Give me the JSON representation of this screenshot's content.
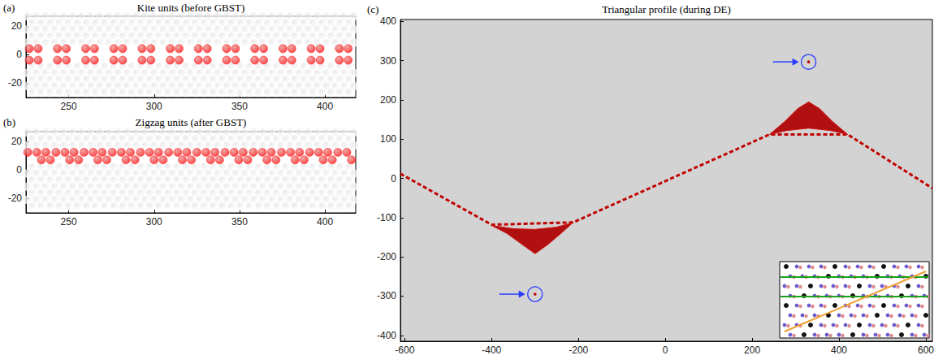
{
  "chart_data": [
    {
      "type": "scatter",
      "label": "(a)",
      "title": "Kite units (before GBST)",
      "xlim": [
        225,
        418
      ],
      "ylim": [
        -30,
        27
      ],
      "xticks": [
        250,
        300,
        350,
        400
      ],
      "yticks": [
        -20,
        0,
        20
      ],
      "series": [
        {
          "color": "#c8c8c8",
          "marker": "circle",
          "rows": [
            {
              "y": 26.9,
              "x_start": 226.0,
              "x_step": 5.3
            },
            {
              "y": 22.3,
              "x_start": 228.7,
              "x_step": 5.3
            },
            {
              "y": 17.7,
              "x_start": 226.0,
              "x_step": 5.3
            },
            {
              "y": 13.1,
              "x_start": 228.7,
              "x_step": 5.3
            },
            {
              "y": 8.5,
              "x_start": 226.0,
              "x_step": 5.3
            },
            {
              "y": -8.2,
              "x_start": 228.7,
              "x_step": 5.3
            },
            {
              "y": -12.8,
              "x_start": 226.0,
              "x_step": 5.3
            },
            {
              "y": -17.4,
              "x_start": 228.7,
              "x_step": 5.3
            },
            {
              "y": -22.0,
              "x_start": 226.0,
              "x_step": 5.3
            },
            {
              "y": -26.6,
              "x_start": 228.7,
              "x_step": 5.3
            }
          ]
        },
        {
          "color": "#cc1111",
          "marker": "circle",
          "rows": [
            {
              "y": 4.3,
              "x": [
                226.9,
                232.1,
                243.4,
                248.6,
                259.9,
                265.1,
                276.4,
                281.6,
                292.9,
                298.1,
                309.4,
                314.6,
                325.9,
                331.1,
                342.4,
                347.6,
                358.9,
                364.1,
                375.4,
                380.6,
                391.9,
                397.1,
                408.4,
                413.6
              ]
            },
            {
              "y": -3.8,
              "x": [
                226.9,
                232.1,
                243.4,
                248.6,
                259.9,
                265.1,
                276.4,
                281.6,
                292.9,
                298.1,
                309.4,
                314.6,
                325.9,
                331.1,
                342.4,
                347.6,
                358.9,
                364.1,
                375.4,
                380.6,
                391.9,
                397.1,
                408.4,
                413.6
              ]
            }
          ]
        }
      ]
    },
    {
      "type": "scatter",
      "label": "(b)",
      "title": "Zigzag units (after GBST)",
      "xlim": [
        225,
        418
      ],
      "ylim": [
        -30,
        27
      ],
      "xticks": [
        250,
        300,
        350,
        400
      ],
      "yticks": [
        -20,
        0,
        20
      ],
      "series": [
        {
          "color": "#c8c8c8",
          "marker": "circle",
          "rows": [
            {
              "y": 26.4,
              "x_start": 226.0,
              "x_step": 5.3
            },
            {
              "y": 21.8,
              "x_start": 228.7,
              "x_step": 5.3
            },
            {
              "y": 17.2,
              "x_start": 226.0,
              "x_step": 5.3
            },
            {
              "y": 2.2,
              "x_start": 228.7,
              "x_step": 5.3
            },
            {
              "y": -2.4,
              "x_start": 226.0,
              "x_step": 5.3
            },
            {
              "y": -7.0,
              "x_start": 228.7,
              "x_step": 5.3
            },
            {
              "y": -11.6,
              "x_start": 226.0,
              "x_step": 5.3
            },
            {
              "y": -16.2,
              "x_start": 228.7,
              "x_step": 5.3
            },
            {
              "y": -20.8,
              "x_start": 226.0,
              "x_step": 5.3
            },
            {
              "y": -25.4,
              "x_start": 228.7,
              "x_step": 5.3
            }
          ]
        },
        {
          "color": "#cc1111",
          "marker": "circle",
          "rows": [
            {
              "y": 12.5,
              "x": [
                226.0,
                231.3,
                236.6,
                242.5,
                247.8,
                253.1,
                259.0,
                264.3,
                269.6,
                275.5,
                280.8,
                286.1,
                292.0,
                297.3,
                302.6,
                308.5,
                313.8,
                319.1,
                325.0,
                330.3,
                335.6,
                341.5,
                346.8,
                352.1,
                358.0,
                363.3,
                368.6,
                374.5,
                379.8,
                385.1,
                391.0,
                396.3,
                401.6,
                407.5,
                412.8
              ]
            },
            {
              "y": 7.2,
              "x": [
                234.0,
                239.3,
                250.5,
                255.8,
                267.0,
                272.3,
                283.5,
                288.8,
                300.0,
                305.3,
                316.5,
                321.8,
                333.0,
                338.3,
                349.5,
                354.8,
                366.0,
                371.3,
                382.5,
                387.8,
                399.0,
                404.3,
                415.5
              ]
            }
          ]
        }
      ]
    },
    {
      "type": "line",
      "label": "(c)",
      "title": "Triangular profile (during DE)",
      "xlim": [
        -610,
        615
      ],
      "ylim": [
        -415,
        405
      ],
      "xticks": [
        -600,
        -400,
        -200,
        0,
        200,
        400,
        600
      ],
      "yticks": [
        -400,
        -300,
        -200,
        -100,
        0,
        100,
        200,
        300,
        400
      ],
      "boundary": {
        "color": "#c00000",
        "line_style": "dashed",
        "x": [
          -610,
          -400,
          -212,
          240,
          420,
          615
        ],
        "y": [
          12,
          -118,
          -112,
          112,
          112,
          -25
        ]
      },
      "regions": [
        {
          "color": "#b01010",
          "x": [
            -400,
            -350,
            -300,
            -250,
            -212,
            -240,
            -270,
            -300,
            -330,
            -365
          ],
          "y": [
            -120,
            -128,
            -130,
            -124,
            -112,
            -140,
            -168,
            -192,
            -168,
            -140
          ]
        },
        {
          "color": "#b01010",
          "x": [
            240,
            275,
            305,
            330,
            355,
            385,
            420,
            380,
            330,
            280
          ],
          "y": [
            112,
            145,
            178,
            195,
            178,
            145,
            112,
            122,
            128,
            122
          ]
        }
      ],
      "markers": {
        "color": "#2a3cff",
        "marker": "circle",
        "x": [
          -300,
          330
        ],
        "y": [
          -295,
          297
        ]
      }
    }
  ]
}
